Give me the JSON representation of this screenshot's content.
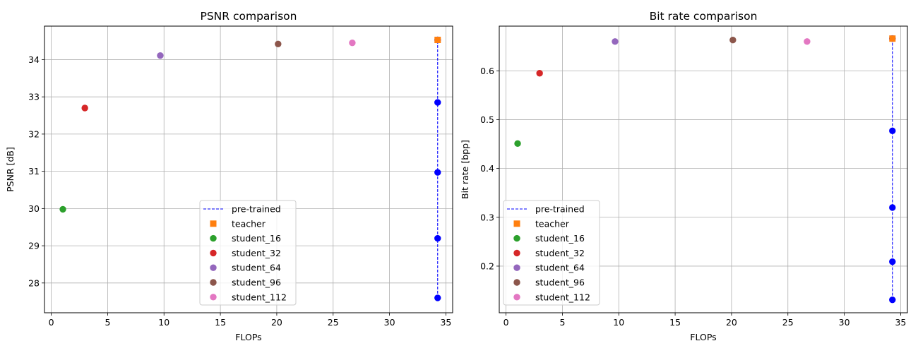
{
  "chart_data": [
    {
      "type": "scatter",
      "title": "PSNR comparison",
      "xlabel": "FLOPs",
      "ylabel": "PSNR [dB]",
      "xlim": [
        -0.6,
        35.6
      ],
      "ylim": [
        27.2,
        34.9
      ],
      "xticks": [
        0,
        5,
        10,
        15,
        20,
        25,
        30,
        35
      ],
      "yticks": [
        28,
        29,
        30,
        31,
        32,
        33,
        34
      ],
      "grid": true,
      "legend_position": "lower center",
      "series": [
        {
          "name": "pre-trained",
          "marker": "circle",
          "line": "dashed",
          "color": "#0000ff",
          "x": [
            34.27,
            34.27,
            34.27,
            34.27,
            34.27
          ],
          "y": [
            27.6,
            29.2,
            30.97,
            32.85,
            34.53
          ]
        },
        {
          "name": "teacher",
          "marker": "square",
          "color": "#ff7f0e",
          "x": [
            34.27
          ],
          "y": [
            34.53
          ]
        },
        {
          "name": "student_16",
          "marker": "circle",
          "color": "#2ca02c",
          "x": [
            1.03
          ],
          "y": [
            29.98
          ]
        },
        {
          "name": "student_32",
          "marker": "circle",
          "color": "#d62728",
          "x": [
            2.98
          ],
          "y": [
            32.7
          ]
        },
        {
          "name": "student_64",
          "marker": "circle",
          "color": "#9467bd",
          "x": [
            9.67
          ],
          "y": [
            34.11
          ]
        },
        {
          "name": "student_96",
          "marker": "circle",
          "color": "#8c564b",
          "x": [
            20.12
          ],
          "y": [
            34.42
          ]
        },
        {
          "name": "student_112",
          "marker": "circle",
          "color": "#e377c2",
          "x": [
            26.7
          ],
          "y": [
            34.45
          ]
        }
      ]
    },
    {
      "type": "scatter",
      "title": "Bit rate comparison",
      "xlabel": "FLOPs",
      "ylabel": "Bit rate [bpp]",
      "xlim": [
        -0.6,
        35.6
      ],
      "ylim": [
        0.1045,
        0.6915
      ],
      "xticks": [
        0,
        5,
        10,
        15,
        20,
        25,
        30,
        35
      ],
      "yticks": [
        0.2,
        0.3,
        0.4,
        0.5,
        0.6
      ],
      "grid": true,
      "legend_position": "lower left",
      "series": [
        {
          "name": "pre-trained",
          "marker": "circle",
          "line": "dashed",
          "color": "#0000ff",
          "x": [
            34.27,
            34.27,
            34.27,
            34.27,
            34.27
          ],
          "y": [
            0.131,
            0.209,
            0.32,
            0.477,
            0.666
          ]
        },
        {
          "name": "teacher",
          "marker": "square",
          "color": "#ff7f0e",
          "x": [
            34.27
          ],
          "y": [
            0.666
          ]
        },
        {
          "name": "student_16",
          "marker": "circle",
          "color": "#2ca02c",
          "x": [
            1.03
          ],
          "y": [
            0.451
          ]
        },
        {
          "name": "student_32",
          "marker": "circle",
          "color": "#d62728",
          "x": [
            2.98
          ],
          "y": [
            0.595
          ]
        },
        {
          "name": "student_64",
          "marker": "circle",
          "color": "#9467bd",
          "x": [
            9.67
          ],
          "y": [
            0.66
          ]
        },
        {
          "name": "student_96",
          "marker": "circle",
          "color": "#8c564b",
          "x": [
            20.12
          ],
          "y": [
            0.663
          ]
        },
        {
          "name": "student_112",
          "marker": "circle",
          "color": "#e377c2",
          "x": [
            26.7
          ],
          "y": [
            0.66
          ]
        }
      ]
    }
  ]
}
